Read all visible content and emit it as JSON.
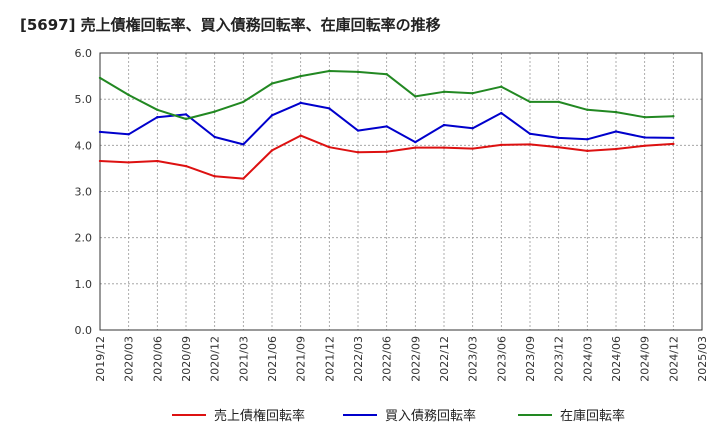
{
  "chart_data": {
    "type": "line",
    "title": "[5697]  売上債権回転率、買入債務回転率、在庫回転率の推移",
    "xlabel": "",
    "ylabel": "",
    "ylim": [
      0,
      6
    ],
    "yticks": [
      "0.0",
      "1.0",
      "2.0",
      "3.0",
      "4.0",
      "5.0",
      "6.0"
    ],
    "grid": true,
    "legend_position": "bottom",
    "x": [
      "2019/12",
      "2020/03",
      "2020/06",
      "2020/09",
      "2020/12",
      "2021/03",
      "2021/06",
      "2021/09",
      "2021/12",
      "2022/03",
      "2022/06",
      "2022/09",
      "2022/12",
      "2023/03",
      "2023/06",
      "2023/09",
      "2023/12",
      "2024/03",
      "2024/06",
      "2024/09",
      "2024/12",
      "2025/03"
    ],
    "series": [
      {
        "name": "売上債権回転率",
        "color": "#dd1111",
        "values": [
          3.66,
          3.63,
          3.66,
          3.55,
          3.33,
          3.28,
          3.89,
          4.21,
          3.96,
          3.85,
          3.86,
          3.95,
          3.95,
          3.93,
          4.01,
          4.02,
          3.96,
          3.88,
          3.92,
          3.99,
          4.03,
          null
        ]
      },
      {
        "name": "買入債務回転率",
        "color": "#0000cc",
        "values": [
          4.29,
          4.24,
          4.61,
          4.67,
          4.18,
          4.02,
          4.65,
          4.92,
          4.8,
          4.32,
          4.41,
          4.07,
          4.44,
          4.37,
          4.7,
          4.25,
          4.16,
          4.13,
          4.3,
          4.17,
          4.16,
          null
        ]
      },
      {
        "name": "在庫回転率",
        "color": "#228822",
        "values": [
          5.46,
          5.09,
          4.77,
          4.57,
          4.73,
          4.94,
          5.34,
          5.5,
          5.61,
          5.59,
          5.54,
          5.06,
          5.16,
          5.13,
          5.27,
          4.94,
          4.94,
          4.77,
          4.72,
          4.61,
          4.63,
          null
        ]
      }
    ]
  }
}
